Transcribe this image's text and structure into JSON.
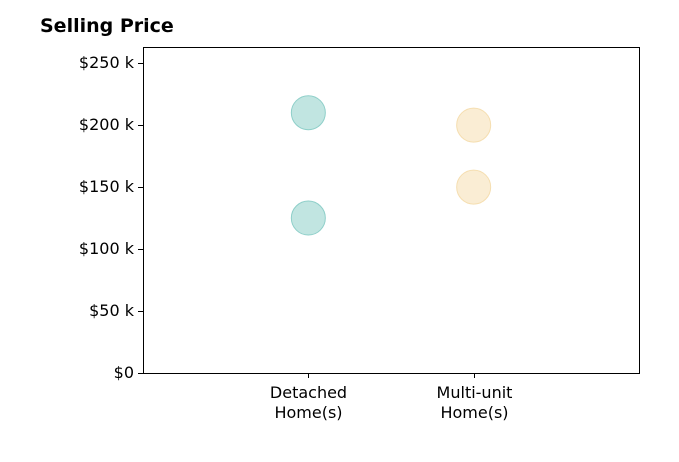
{
  "chart_data": {
    "type": "scatter",
    "title": "Selling Price",
    "categories": [
      "Detached\nHome(s)",
      "Multi-unit\nHome(s)"
    ],
    "series": [
      {
        "category_index": 0,
        "values": [
          210000,
          125000
        ],
        "color": "#8ecfc9"
      },
      {
        "category_index": 1,
        "values": [
          200000,
          150000
        ],
        "color": "#f5deb0"
      }
    ],
    "y_ticks": [
      0,
      50000,
      100000,
      150000,
      200000,
      250000
    ],
    "y_tick_labels": [
      "$0",
      "$50 k",
      "$100 k",
      "$150 k",
      "$200 k",
      "$250 k"
    ],
    "ylim": [
      0,
      263000
    ],
    "xlim": [
      -1,
      2
    ],
    "grid": false
  }
}
